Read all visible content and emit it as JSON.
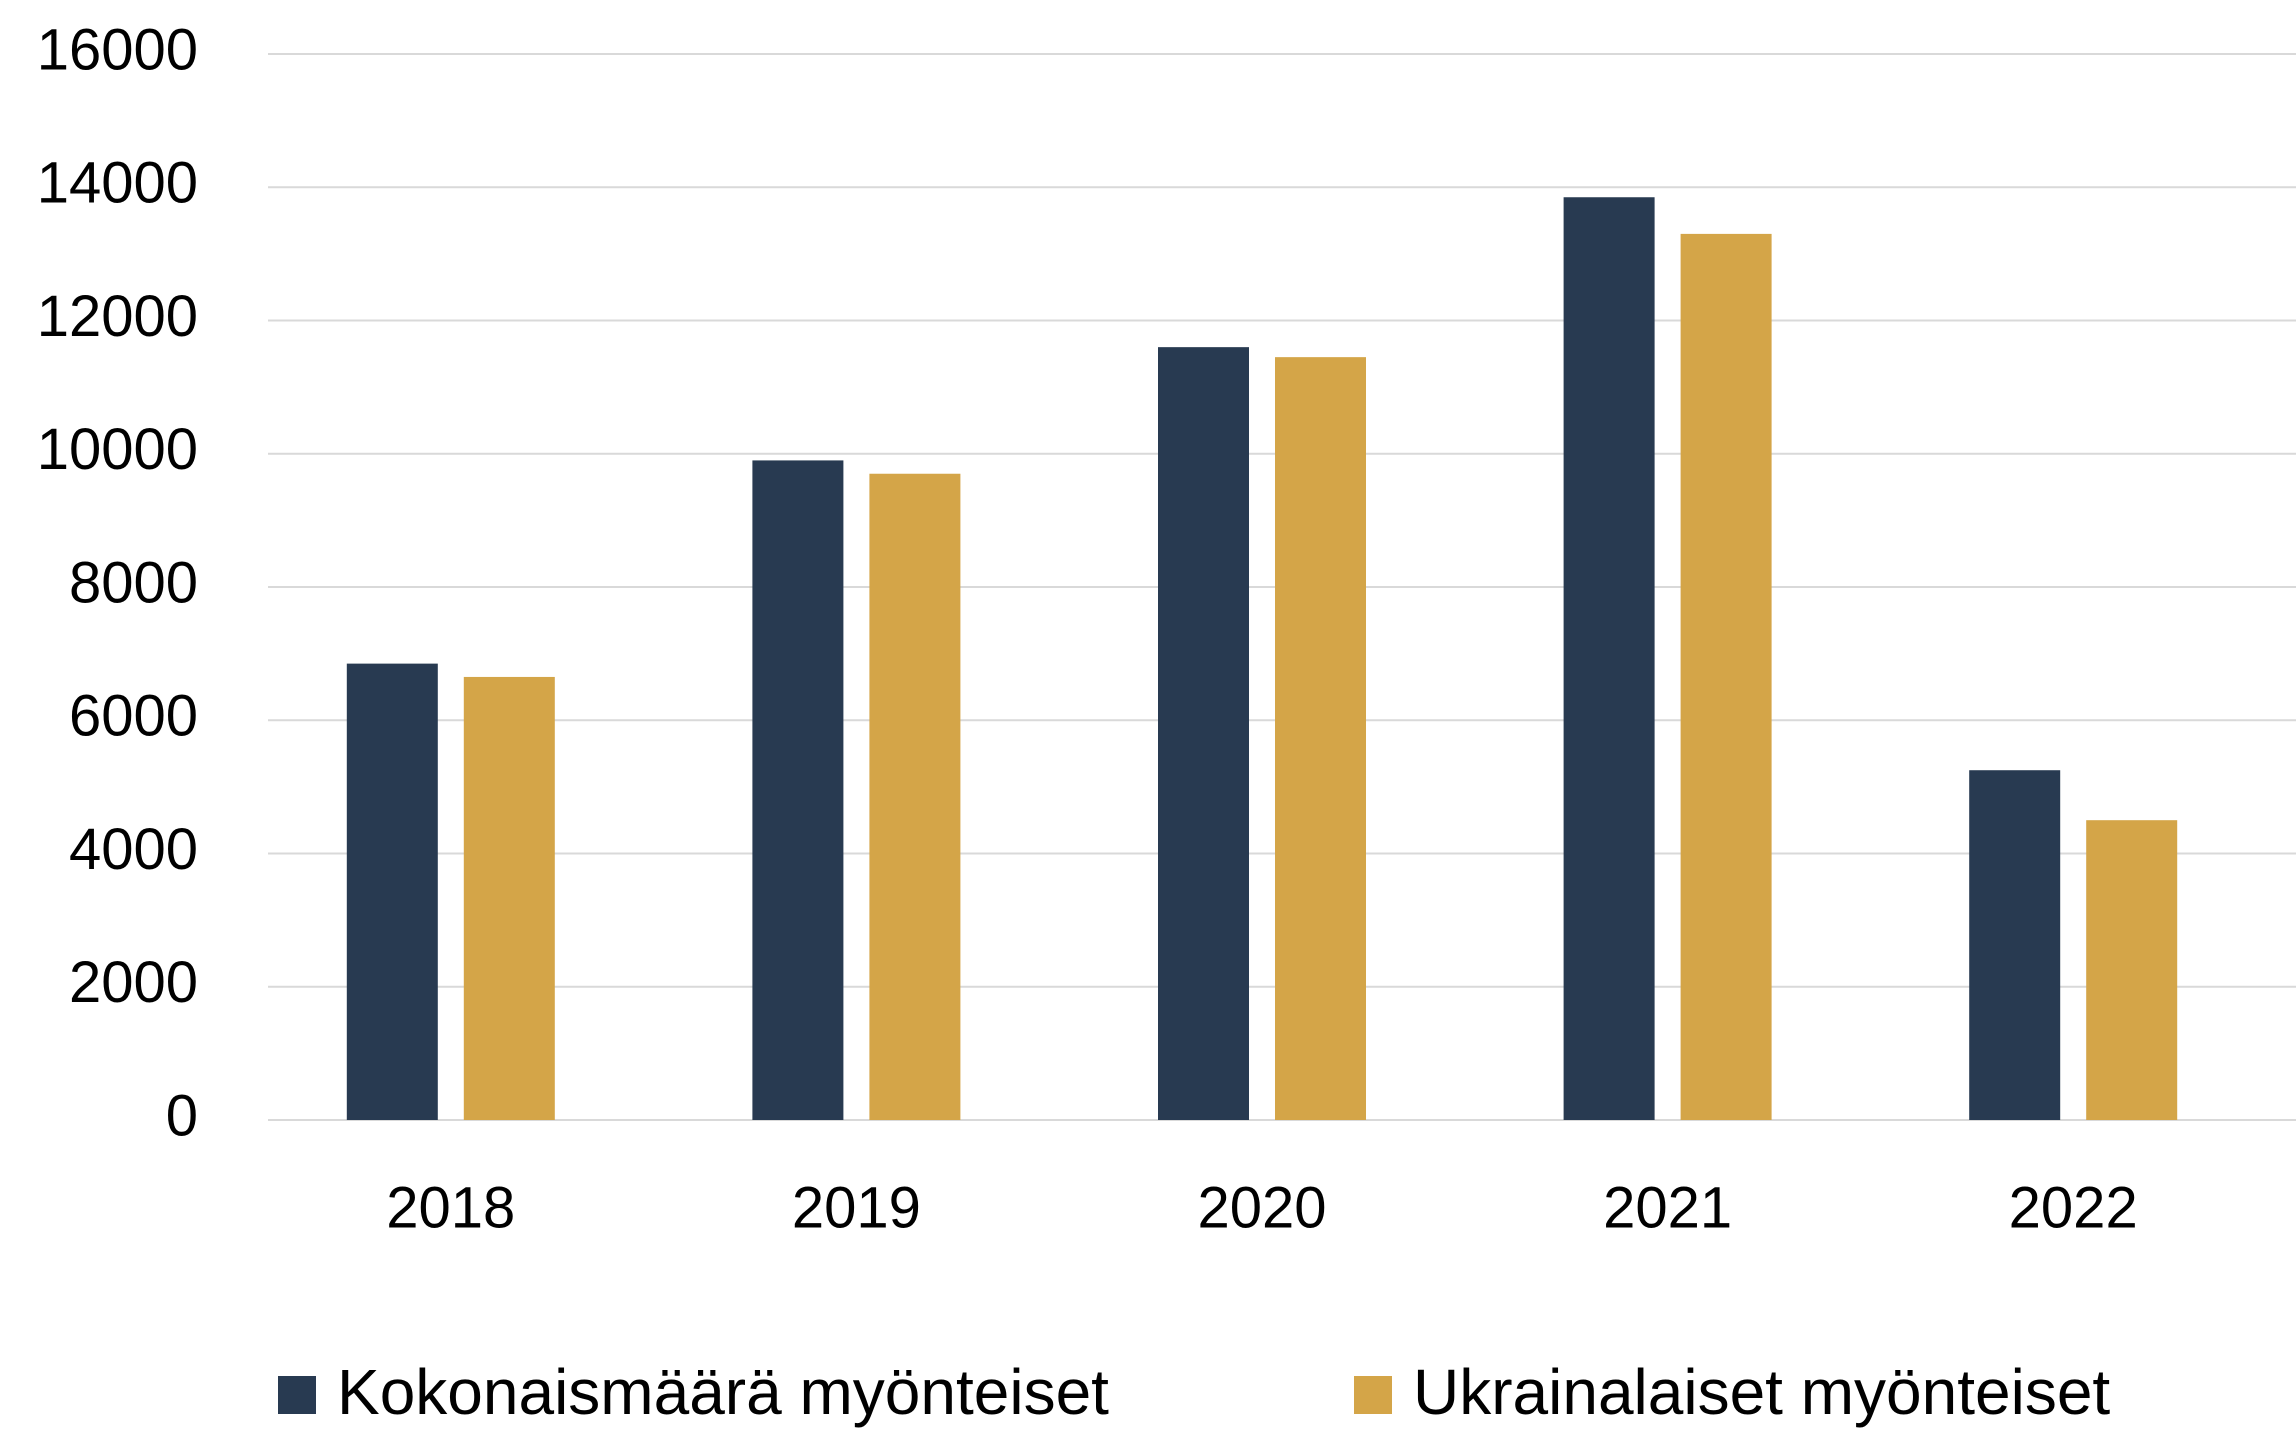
{
  "chart_data": {
    "type": "bar",
    "categories": [
      "2018",
      "2019",
      "2020",
      "2021",
      "2022"
    ],
    "series": [
      {
        "name": "Kokonaismäärä myönteiset",
        "color": "#283a51",
        "values": [
          6850,
          9900,
          11600,
          13850,
          5250
        ]
      },
      {
        "name": "Ukrainalaiset myönteiset",
        "color": "#d4a548",
        "values": [
          6650,
          9700,
          11450,
          13300,
          4500
        ]
      }
    ],
    "ylim": [
      0,
      16000
    ],
    "yticks": [
      0,
      2000,
      4000,
      6000,
      8000,
      10000,
      12000,
      14000,
      16000
    ],
    "grid": true,
    "legend": "bottom"
  }
}
